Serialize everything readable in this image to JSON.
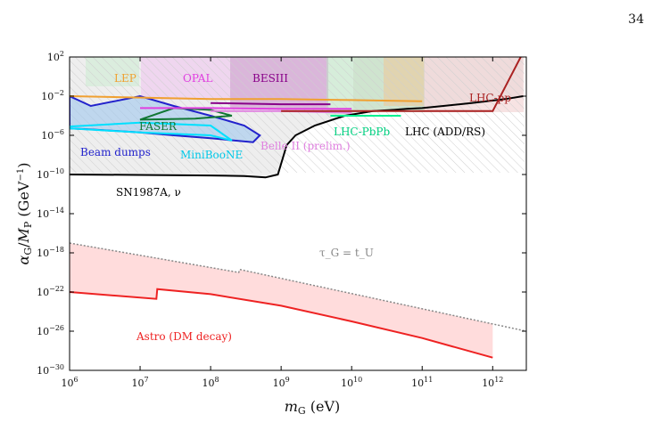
{
  "page_number": "34",
  "chart_data": {
    "type": "area",
    "title": "",
    "xlabel": "m_G (eV)",
    "ylabel": "α_G/M_P (GeV^-1)",
    "x_scale": "log",
    "y_scale": "log",
    "xlim": [
      1000000.0,
      3000000000000.0
    ],
    "ylim": [
      1e-30,
      100.0
    ],
    "x_ticks": [
      {
        "value": 1000000.0,
        "label": "10^6"
      },
      {
        "value": 10000000.0,
        "label": "10^7"
      },
      {
        "value": 100000000.0,
        "label": "10^8"
      },
      {
        "value": 1000000000.0,
        "label": "10^9"
      },
      {
        "value": 10000000000.0,
        "label": "10^10"
      },
      {
        "value": 100000000000.0,
        "label": "10^11"
      },
      {
        "value": 1000000000000.0,
        "label": "10^12"
      }
    ],
    "y_ticks": [
      {
        "value": 100.0,
        "label": "10^2"
      },
      {
        "value": 0.01,
        "label": "10^-2"
      },
      {
        "value": 1e-06,
        "label": "10^-6"
      },
      {
        "value": 1e-10,
        "label": "10^-10"
      },
      {
        "value": 1e-14,
        "label": "10^-14"
      },
      {
        "value": 1e-18,
        "label": "10^-18"
      },
      {
        "value": 1e-22,
        "label": "10^-22"
      },
      {
        "value": 1e-26,
        "label": "10^-26"
      },
      {
        "value": 1e-30,
        "label": "10^-30"
      }
    ],
    "series": [
      {
        "name": "SN1987A, ν",
        "color": "#000000",
        "kind": "boundary",
        "x": [
          1000000.0,
          10000000.0,
          100000000.0,
          300000000.0,
          600000000.0,
          900000000.0,
          1200000000.0,
          1600000000.0,
          3000000000.0,
          8000000000.0,
          20000000000.0,
          40000000000.0,
          60000000000.0,
          100000000000.0,
          200000000000.0,
          500000000000.0,
          1500000000000.0,
          2700000000000.0
        ],
        "y": [
          1e-10,
          9e-11,
          8e-11,
          7e-11,
          5e-11,
          1e-10,
          1e-07,
          1e-06,
          1e-05,
          0.0001,
          0.0003,
          0.0004,
          0.0005,
          0.0006,
          0.001,
          0.002,
          0.005,
          0.01
        ]
      },
      {
        "name": "LHC (ADD/RS)",
        "color": "#000000",
        "kind": "label_only",
        "x": [],
        "y": []
      },
      {
        "name": "Beam dumps",
        "color": "#2222cc",
        "kind": "closed",
        "x": [
          1000000.0,
          2000000.0,
          10000000.0,
          30000000.0,
          100000000.0,
          300000000.0,
          500000000.0,
          400000000.0,
          100000000.0,
          30000000.0,
          10000000.0,
          2000000.0,
          1000000.0
        ],
        "y": [
          0.01,
          0.001,
          0.01,
          0.001,
          0.0001,
          1e-05,
          1e-06,
          2e-07,
          5e-07,
          1e-06,
          2e-06,
          4e-06,
          5e-06
        ]
      },
      {
        "name": "MiniBooNE",
        "color": "#00e0ff",
        "kind": "closed",
        "x": [
          1000000.0,
          10000000.0,
          100000000.0,
          200000000.0,
          100000000.0,
          10000000.0,
          1000000.0
        ],
        "y": [
          8e-06,
          2e-05,
          1e-05,
          3e-07,
          1e-06,
          2e-06,
          5e-06
        ]
      },
      {
        "name": "FASER",
        "color": "#117733",
        "kind": "closed",
        "x": [
          10000000.0,
          30000000.0,
          100000000.0,
          200000000.0,
          60000000.0,
          10000000.0
        ],
        "y": [
          4e-05,
          0.0006,
          0.0004,
          0.0001,
          5e-05,
          4e-05
        ]
      },
      {
        "name": "LEP",
        "color": "#f0a030",
        "kind": "line",
        "x": [
          1000000.0,
          100000000.0,
          1000000000.0,
          10000000000.0,
          100000000000.0
        ],
        "y": [
          0.01,
          0.005,
          0.005,
          0.004,
          0.003
        ]
      },
      {
        "name": "OPAL",
        "color": "#e040e0",
        "kind": "line",
        "x": [
          10000000.0,
          100000000.0,
          1000000000.0,
          10000000000.0
        ],
        "y": [
          0.0006,
          0.0006,
          0.0005,
          0.0005
        ]
      },
      {
        "name": "BESIII",
        "color": "#880088",
        "kind": "line",
        "x": [
          100000000.0,
          1000000000.0,
          5000000000.0
        ],
        "y": [
          0.002,
          0.0015,
          0.0015
        ]
      },
      {
        "name": "Belle II (prelim.)",
        "color": "#e080e0",
        "kind": "line",
        "x": [
          100000000.0,
          1000000000.0,
          10000000000.0
        ],
        "y": [
          0.0003,
          0.0003,
          0.0002
        ]
      },
      {
        "name": "LHC-PbPb",
        "color": "#00f090",
        "kind": "line",
        "x": [
          5000000000.0,
          10000000000.0,
          50000000000.0
        ],
        "y": [
          0.0001,
          0.0001,
          0.0001
        ]
      },
      {
        "name": "LHC-pp",
        "color": "#aa2222",
        "kind": "line",
        "x": [
          1000000000.0,
          10000000000.0,
          100000000000.0,
          1000000000000.0,
          2500000000000.0
        ],
        "y": [
          0.0003,
          0.0003,
          0.0003,
          0.0003,
          100.0
        ]
      },
      {
        "name": "Astro (DM decay)",
        "color": "#ee2222",
        "kind": "line",
        "x": [
          1000000.0,
          17000000.0,
          17500000.0,
          100000000.0,
          1000000000.0,
          10000000000.0,
          100000000000.0,
          1000000000000.0
        ],
        "y": [
          1e-22,
          2e-23,
          2e-22,
          6e-23,
          4e-24,
          1e-25,
          2e-27,
          2e-29
        ]
      },
      {
        "name": "τ_G = t_U",
        "color": "#888888",
        "kind": "dotted",
        "x": [
          1000000.0,
          250000000.0,
          260000000.0,
          3000000000000.0
        ],
        "y": [
          1e-17,
          1e-20,
          2e-20,
          1e-26
        ]
      }
    ],
    "legend": "inline-labels",
    "grid": false
  }
}
